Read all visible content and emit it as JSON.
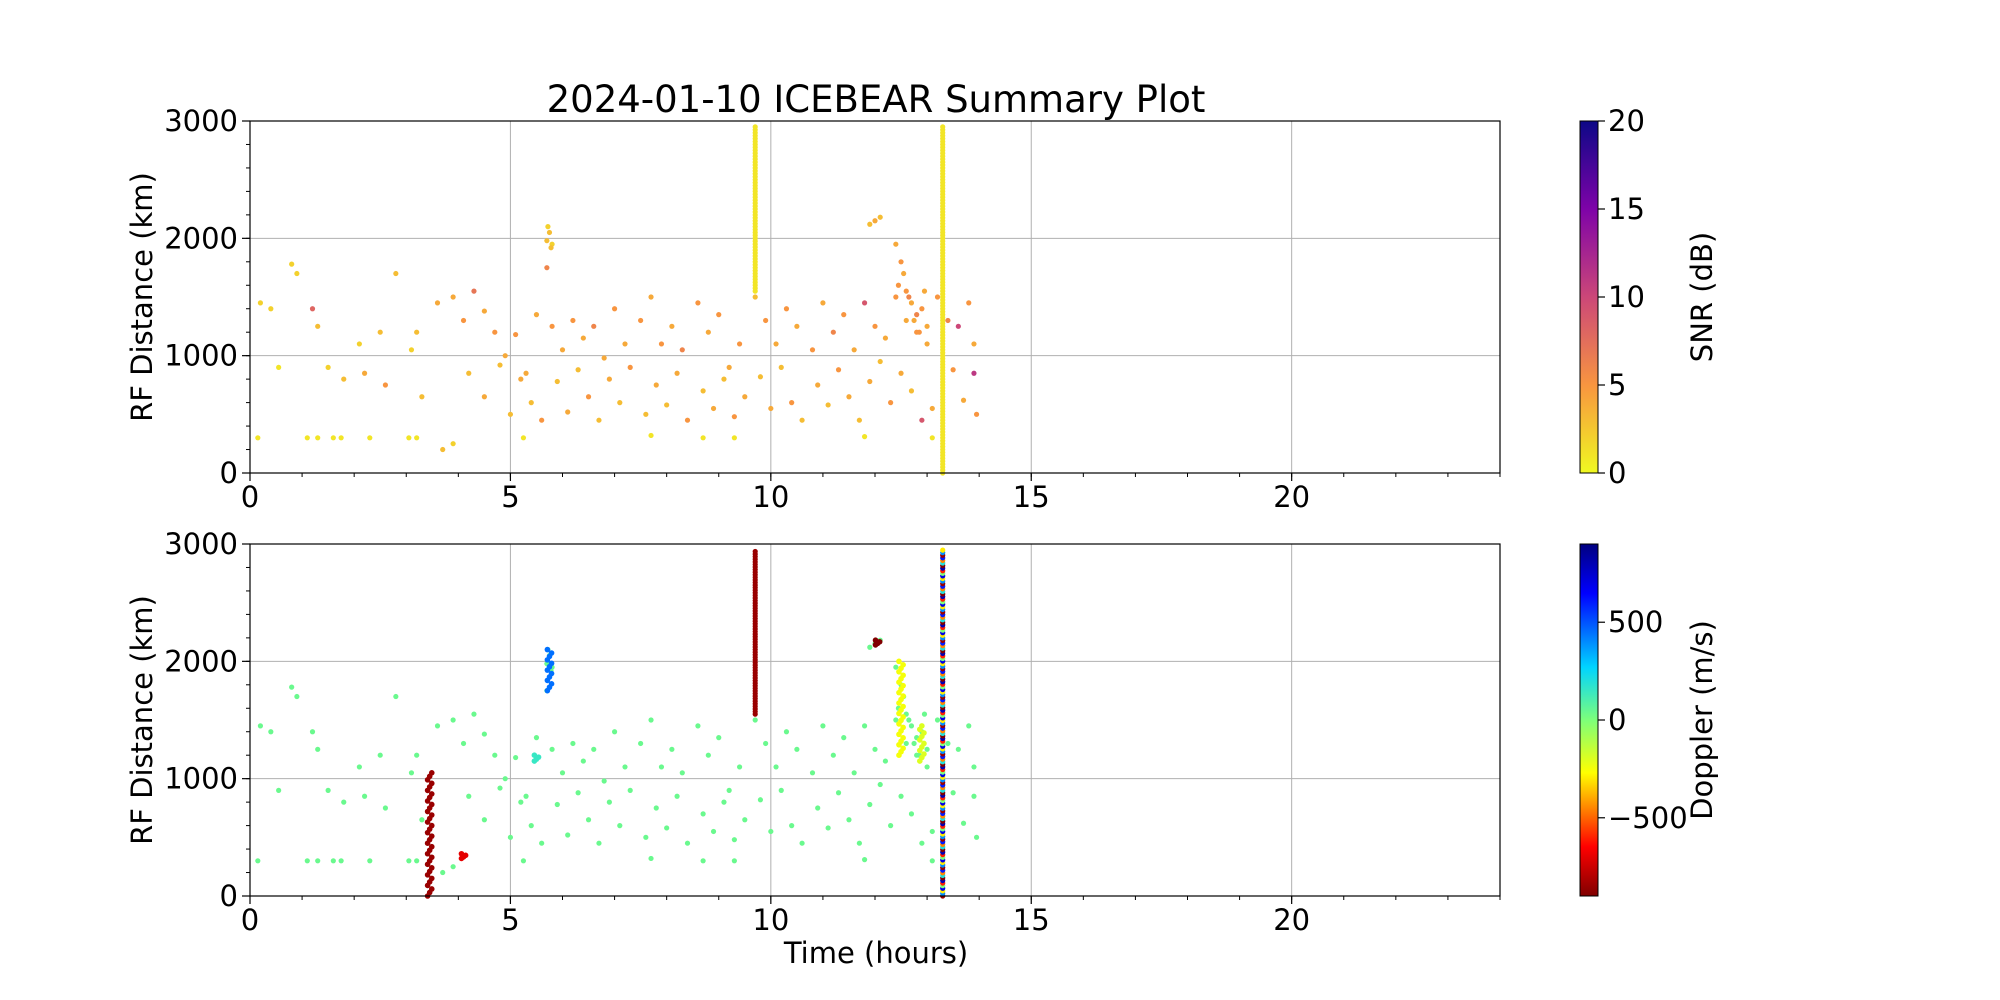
{
  "figure": {
    "title": "2024-01-10 ICEBEAR Summary Plot",
    "xlabel": "Time (hours)"
  },
  "chart_data": [
    {
      "type": "scatter",
      "ylabel": "RF Distance (km)",
      "xlim": [
        0,
        24
      ],
      "ylim": [
        0,
        3000
      ],
      "x_ticks": [
        0,
        5,
        10,
        15,
        20
      ],
      "y_ticks": [
        0,
        1000,
        2000,
        3000
      ],
      "grid": true,
      "colorbar": {
        "label": "SNR (dB)",
        "colormap": "plasma_r",
        "range": [
          0,
          20
        ],
        "ticks": [
          0,
          5,
          10,
          15,
          20
        ]
      },
      "series": [
        {
          "points": [
            [
              0.15,
              300,
              1
            ],
            [
              0.2,
              1450,
              2
            ],
            [
              0.4,
              1400,
              2
            ],
            [
              0.55,
              900,
              1
            ],
            [
              0.8,
              1780,
              2
            ],
            [
              0.9,
              1700,
              2
            ],
            [
              1.2,
              1400,
              8
            ],
            [
              1.3,
              1250,
              3
            ],
            [
              1.5,
              900,
              2
            ],
            [
              1.8,
              800,
              3
            ],
            [
              2.1,
              1100,
              2
            ],
            [
              2.2,
              850,
              4
            ],
            [
              2.5,
              1200,
              3
            ],
            [
              2.6,
              750,
              5
            ],
            [
              2.8,
              1700,
              3
            ],
            [
              3.1,
              1050,
              2
            ],
            [
              3.2,
              1200,
              3
            ],
            [
              3.3,
              650,
              3
            ],
            [
              3.6,
              1450,
              4
            ],
            [
              3.9,
              1500,
              4
            ],
            [
              4.1,
              1300,
              5
            ],
            [
              4.3,
              1550,
              7
            ],
            [
              4.5,
              1380,
              4
            ],
            [
              4.7,
              1200,
              5
            ],
            [
              4.9,
              1000,
              4
            ],
            [
              5.1,
              1180,
              5
            ],
            [
              5.3,
              850,
              4
            ],
            [
              5.5,
              1350,
              4
            ],
            [
              5.7,
              1750,
              6
            ],
            [
              5.8,
              1250,
              5
            ],
            [
              6.0,
              1050,
              4
            ],
            [
              6.2,
              1300,
              5
            ],
            [
              6.4,
              1150,
              4
            ],
            [
              6.6,
              1250,
              6
            ],
            [
              6.8,
              980,
              4
            ],
            [
              7.0,
              1400,
              5
            ],
            [
              7.2,
              1100,
              4
            ],
            [
              7.5,
              1300,
              5
            ],
            [
              7.7,
              1500,
              4
            ],
            [
              7.9,
              1100,
              5
            ],
            [
              8.1,
              1250,
              4
            ],
            [
              8.3,
              1050,
              6
            ],
            [
              8.6,
              1450,
              5
            ],
            [
              8.8,
              1200,
              4
            ],
            [
              9.0,
              1350,
              5
            ],
            [
              9.2,
              900,
              4
            ],
            [
              9.4,
              1100,
              5
            ],
            [
              9.7,
              1500,
              3
            ],
            [
              9.9,
              1300,
              5
            ],
            [
              10.1,
              1100,
              4
            ],
            [
              10.3,
              1400,
              5
            ],
            [
              10.5,
              1250,
              4
            ],
            [
              10.8,
              1050,
              5
            ],
            [
              11.0,
              1450,
              4
            ],
            [
              11.2,
              1200,
              6
            ],
            [
              11.4,
              1350,
              5
            ],
            [
              11.6,
              1050,
              4
            ],
            [
              11.8,
              1450,
              9
            ],
            [
              12.0,
              1250,
              5
            ],
            [
              12.2,
              1150,
              4
            ],
            [
              12.4,
              1500,
              5
            ],
            [
              12.6,
              1300,
              4
            ],
            [
              12.8,
              1200,
              5
            ],
            [
              13.0,
              1100,
              4
            ],
            [
              13.2,
              1500,
              5
            ],
            [
              13.4,
              1300,
              6
            ],
            [
              13.6,
              1250,
              10
            ],
            [
              13.8,
              1450,
              5
            ],
            [
              13.9,
              1100,
              4
            ],
            [
              3.7,
              200,
              3
            ],
            [
              3.9,
              250,
              2
            ],
            [
              4.2,
              850,
              3
            ],
            [
              4.5,
              650,
              4
            ],
            [
              4.8,
              920,
              3
            ],
            [
              5.0,
              500,
              3
            ],
            [
              5.2,
              800,
              4
            ],
            [
              5.4,
              600,
              3
            ],
            [
              5.6,
              450,
              5
            ],
            [
              5.9,
              780,
              3
            ],
            [
              6.1,
              520,
              4
            ],
            [
              6.3,
              880,
              3
            ],
            [
              6.5,
              650,
              5
            ],
            [
              6.7,
              450,
              3
            ],
            [
              6.9,
              800,
              4
            ],
            [
              7.1,
              600,
              3
            ],
            [
              7.3,
              900,
              5
            ],
            [
              7.6,
              500,
              3
            ],
            [
              7.8,
              750,
              4
            ],
            [
              8.0,
              580,
              3
            ],
            [
              8.2,
              850,
              4
            ],
            [
              8.4,
              450,
              5
            ],
            [
              8.7,
              700,
              3
            ],
            [
              8.9,
              550,
              4
            ],
            [
              9.1,
              800,
              3
            ],
            [
              9.3,
              480,
              5
            ],
            [
              9.5,
              650,
              4
            ],
            [
              9.8,
              820,
              3
            ],
            [
              10.0,
              550,
              4
            ],
            [
              10.2,
              900,
              3
            ],
            [
              10.4,
              600,
              5
            ],
            [
              10.6,
              450,
              3
            ],
            [
              10.9,
              750,
              4
            ],
            [
              11.1,
              580,
              3
            ],
            [
              11.3,
              880,
              5
            ],
            [
              11.5,
              650,
              4
            ],
            [
              11.7,
              450,
              3
            ],
            [
              11.9,
              780,
              4
            ],
            [
              12.1,
              950,
              3
            ],
            [
              12.3,
              600,
              5
            ],
            [
              12.5,
              850,
              4
            ],
            [
              12.7,
              700,
              3
            ],
            [
              12.9,
              450,
              9
            ],
            [
              13.1,
              550,
              4
            ],
            [
              13.5,
              880,
              5
            ],
            [
              13.7,
              620,
              4
            ],
            [
              13.9,
              850,
              11
            ],
            [
              13.95,
              500,
              5
            ],
            [
              1.1,
              300,
              1
            ],
            [
              1.3,
              300,
              1
            ],
            [
              1.6,
              300,
              1
            ],
            [
              1.75,
              300,
              1
            ],
            [
              2.3,
              300,
              1
            ],
            [
              3.05,
              300,
              1
            ],
            [
              3.2,
              300,
              1
            ],
            [
              5.25,
              300,
              1
            ],
            [
              7.7,
              320,
              1
            ],
            [
              8.7,
              300,
              1
            ],
            [
              9.3,
              300,
              1
            ],
            [
              11.8,
              310,
              1
            ],
            [
              13.1,
              300,
              1
            ],
            [
              5.75,
              2050,
              3
            ],
            [
              5.7,
              1980,
              3
            ],
            [
              5.8,
              1950,
              2
            ],
            [
              5.72,
              2100,
              2
            ],
            [
              5.78,
              1920,
              3
            ],
            [
              12.0,
              2150,
              4
            ],
            [
              12.1,
              2180,
              3
            ],
            [
              11.9,
              2120,
              3
            ],
            [
              12.4,
              1950,
              4
            ],
            [
              12.5,
              1800,
              5
            ],
            [
              12.55,
              1700,
              4
            ],
            [
              12.6,
              1550,
              5
            ],
            [
              12.7,
              1450,
              4
            ],
            [
              12.8,
              1350,
              6
            ],
            [
              12.9,
              1400,
              5
            ],
            [
              13.0,
              1250,
              4
            ],
            [
              12.45,
              1600,
              5
            ],
            [
              12.65,
              1500,
              6
            ],
            [
              12.75,
              1300,
              4
            ],
            [
              12.85,
              1200,
              5
            ],
            [
              12.95,
              1550,
              4
            ]
          ],
          "vertical_streaks": [
            {
              "x": 9.7,
              "y_from": 1550,
              "y_to": 2950,
              "snr": 1
            },
            {
              "x": 13.3,
              "y_from": 0,
              "y_to": 2950,
              "snr": 1
            }
          ]
        }
      ]
    },
    {
      "type": "scatter",
      "ylabel": "RF Distance (km)",
      "xlim": [
        0,
        24
      ],
      "ylim": [
        0,
        3000
      ],
      "x_ticks": [
        0,
        5,
        10,
        15,
        20
      ],
      "y_ticks": [
        0,
        1000,
        2000,
        3000
      ],
      "grid": true,
      "colorbar": {
        "label": "Doppler (m/s)",
        "colormap": "jet_r",
        "range": [
          -900,
          900
        ],
        "ticks": [
          -500,
          0,
          500
        ],
        "tick_labels": [
          "−500",
          "0",
          "500"
        ]
      },
      "series": [
        {
          "points_same_as_panel_1_with_doppler": 0,
          "clusters": [
            {
              "x": 5.75,
              "y_from": 1750,
              "y_to": 2100,
              "doppler": 450
            },
            {
              "x": 5.5,
              "y_from": 1150,
              "y_to": 1200,
              "doppler": 150
            },
            {
              "x": 12.5,
              "y_from": 1200,
              "y_to": 2000,
              "doppler": -250
            },
            {
              "x": 12.9,
              "y_from": 1150,
              "y_to": 1450,
              "doppler": -200
            },
            {
              "x": 12.05,
              "y_from": 2140,
              "y_to": 2180,
              "doppler": -900
            },
            {
              "x": 3.45,
              "y_from": 0,
              "y_to": 1050,
              "doppler": -850
            },
            {
              "x": 4.1,
              "y_from": 320,
              "y_to": 360,
              "doppler": -700
            }
          ],
          "vertical_streaks": [
            {
              "x": 9.7,
              "y_from": 1550,
              "y_to": 2950,
              "doppler": -850
            },
            {
              "x": 13.3,
              "y_from": 0,
              "y_to": 2950,
              "doppler": "mixed"
            }
          ]
        }
      ]
    }
  ]
}
